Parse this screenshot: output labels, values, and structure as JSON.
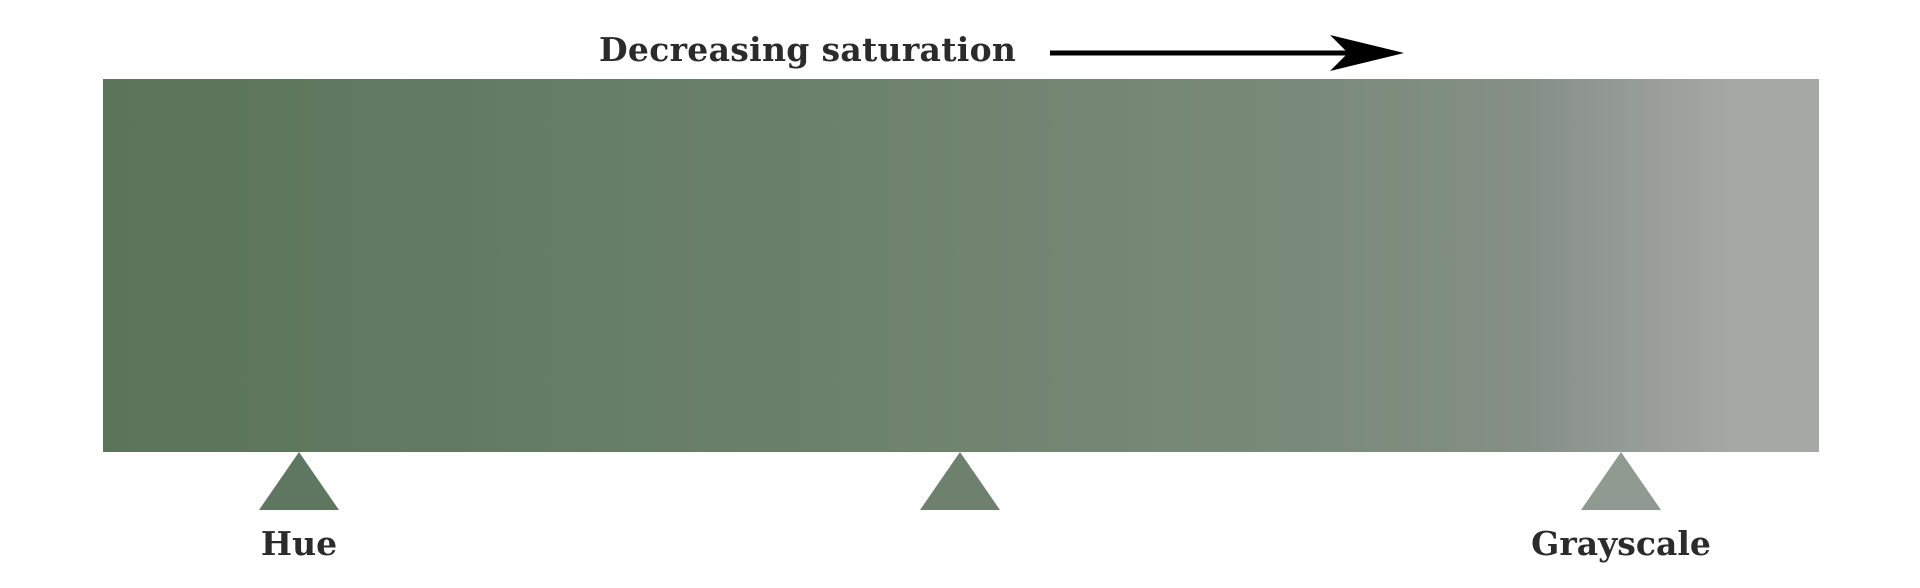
{
  "header": {
    "title": "Decreasing saturation",
    "arrow_icon": "arrow-right-icon"
  },
  "gradient": {
    "colors": [
      "#5a7559",
      "#627a62",
      "#6d826d",
      "#7b8b7b",
      "#858f86",
      "#a6a8a5"
    ],
    "direction": "left-to-right"
  },
  "markers": [
    {
      "label": "Hue",
      "color": "#5f7660"
    },
    {
      "label": "",
      "color": "#6e806e"
    },
    {
      "label": "Grayscale",
      "color": "#909a91"
    }
  ]
}
